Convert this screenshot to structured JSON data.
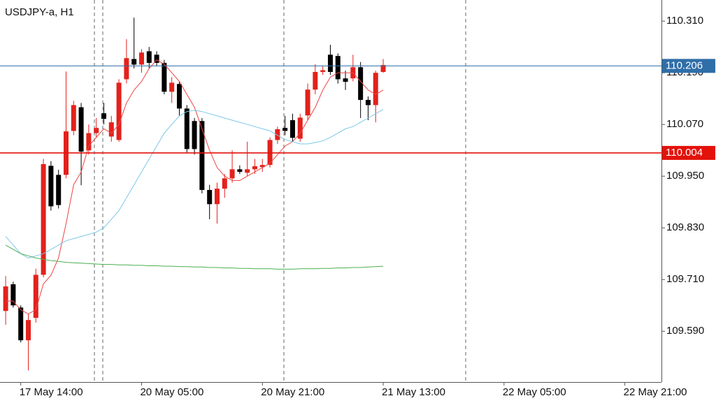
{
  "chart_data": {
    "type": "candlestick",
    "title": "USDJPY-a, H1",
    "x": [
      0,
      1,
      2,
      3,
      4,
      5,
      6,
      7,
      8,
      9,
      10,
      11,
      12,
      13,
      14,
      15,
      16,
      17,
      18,
      19,
      20,
      21,
      22,
      23,
      24,
      25,
      26,
      27,
      28,
      29,
      30,
      31,
      32,
      33,
      34,
      35,
      36,
      37,
      38,
      39,
      40,
      41,
      42,
      43,
      44,
      45,
      46,
      47,
      48,
      49,
      50
    ],
    "open": [
      109.637,
      109.699,
      109.645,
      109.569,
      109.621,
      109.721,
      109.974,
      109.953,
      109.953,
      110.055,
      110.11,
      110.01,
      110.05,
      110.096,
      110.042,
      110.034,
      110.175,
      110.222,
      110.209,
      110.24,
      110.232,
      110.213,
      110.146,
      110.164,
      110.107,
      110.078,
      110.078,
      109.918,
      109.885,
      109.921,
      109.945,
      109.966,
      109.958,
      109.966,
      109.971,
      109.976,
      110.034,
      110.062,
      110.08,
      110.037,
      110.091,
      110.151,
      110.192,
      110.232,
      110.229,
      110.177,
      110.177,
      110.203,
      110.127,
      110.115,
      110.192
    ],
    "high": [
      109.718,
      109.705,
      109.65,
      109.63,
      109.735,
      109.99,
      109.985,
      109.965,
      110.193,
      110.125,
      110.12,
      110.07,
      110.085,
      110.12,
      110.09,
      110.175,
      110.268,
      110.318,
      110.245,
      110.25,
      110.24,
      110.22,
      110.18,
      110.17,
      110.115,
      110.085,
      110.085,
      109.93,
      109.935,
      109.955,
      110.01,
      109.975,
      110.03,
      109.99,
      109.99,
      110.04,
      110.065,
      110.09,
      110.095,
      110.095,
      110.165,
      110.21,
      110.205,
      110.255,
      110.235,
      110.195,
      110.232,
      110.215,
      110.135,
      110.195,
      110.222
    ],
    "low": [
      109.605,
      109.645,
      109.564,
      109.499,
      109.61,
      109.715,
      109.87,
      109.875,
      109.945,
      110.045,
      109.929,
      110.0,
      110.04,
      110.07,
      110.03,
      110.03,
      110.165,
      110.2,
      110.19,
      110.2,
      110.205,
      110.14,
      110.12,
      110.09,
      110.005,
      110.0,
      109.91,
      109.85,
      109.84,
      109.9,
      109.935,
      109.955,
      109.95,
      109.955,
      109.96,
      109.97,
      110.025,
      110.045,
      110.03,
      110.03,
      110.08,
      110.14,
      110.185,
      110.185,
      110.165,
      110.15,
      110.17,
      110.085,
      110.08,
      110.075,
      110.19
    ],
    "close": [
      109.694,
      109.65,
      109.569,
      109.616,
      109.721,
      109.978,
      109.88,
      109.883,
      110.054,
      110.115,
      110.007,
      110.05,
      110.062,
      110.083,
      110.075,
      110.167,
      110.224,
      110.209,
      110.237,
      110.213,
      110.213,
      110.146,
      110.167,
      110.107,
      110.013,
      110.013,
      109.918,
      109.885,
      109.921,
      109.945,
      109.966,
      109.96,
      109.966,
      109.973,
      109.976,
      110.034,
      110.059,
      110.055,
      110.039,
      110.086,
      110.151,
      110.192,
      110.196,
      110.192,
      110.175,
      110.169,
      110.203,
      110.127,
      110.115,
      110.19,
      110.208
    ],
    "up_color": "#e3211c",
    "down_color": "#000000",
    "series": [
      {
        "color": "#ee4444",
        "values": [
          109.66,
          109.66,
          109.64,
          109.63,
          109.64,
          109.7,
          109.72,
          109.76,
          109.84,
          109.93,
          109.96,
          110.02,
          110.04,
          110.06,
          110.05,
          110.07,
          110.12,
          110.15,
          110.17,
          110.2,
          110.22,
          110.21,
          110.19,
          110.17,
          110.14,
          110.11,
          110.06,
          110.01,
          109.97,
          109.95,
          109.94,
          109.94,
          109.95,
          109.96,
          109.97,
          109.98,
          110.0,
          110.02,
          110.03,
          110.05,
          110.08,
          110.11,
          110.15,
          110.18,
          110.19,
          110.19,
          110.19,
          110.17,
          110.15,
          110.14,
          110.15
        ]
      },
      {
        "color": "#7cc8e8",
        "values": [
          109.81,
          109.79,
          109.77,
          109.76,
          109.765,
          109.77,
          109.78,
          109.79,
          109.8,
          109.805,
          109.81,
          109.815,
          109.82,
          109.83,
          109.85,
          109.87,
          109.9,
          109.93,
          109.96,
          109.99,
          110.02,
          110.05,
          110.07,
          110.09,
          110.1,
          110.103,
          110.1,
          110.095,
          110.09,
          110.085,
          110.08,
          110.075,
          110.07,
          110.065,
          110.06,
          110.055,
          110.045,
          110.035,
          110.03,
          110.025,
          110.025,
          110.028,
          110.032,
          110.04,
          110.05,
          110.06,
          110.065,
          110.075,
          110.085,
          110.095,
          110.105
        ]
      },
      {
        "color": "#4caf50",
        "values": [
          109.79,
          109.78,
          109.77,
          109.765,
          109.76,
          109.757,
          109.754,
          109.752,
          109.75,
          109.749,
          109.748,
          109.747,
          109.746,
          109.745,
          109.745,
          109.744,
          109.744,
          109.743,
          109.743,
          109.742,
          109.742,
          109.741,
          109.741,
          109.74,
          109.74,
          109.739,
          109.739,
          109.738,
          109.738,
          109.737,
          109.737,
          109.736,
          109.736,
          109.735,
          109.735,
          109.735,
          109.734,
          109.734,
          109.734,
          109.735,
          109.735,
          109.735,
          109.736,
          109.736,
          109.737,
          109.737,
          109.738,
          109.738,
          109.739,
          109.74,
          109.741
        ]
      }
    ],
    "hlines": [
      {
        "value": 110.206,
        "color": "#2f6ea8"
      },
      {
        "value": 110.004,
        "color": "#e3120b"
      }
    ],
    "xlim": [
      -0.75,
      86.85
    ],
    "xticks": [
      {
        "value": 2,
        "label": "17 May 14:00"
      },
      {
        "value": 18,
        "label": "20 May 05:00"
      },
      {
        "value": 34,
        "label": "20 May 21:00"
      },
      {
        "value": 50,
        "label": "21 May 13:00"
      },
      {
        "value": 66,
        "label": "22 May 05:00"
      },
      {
        "value": 82,
        "label": "22 May 21:00"
      }
    ],
    "ylim": [
      109.472,
      110.359
    ],
    "yticks": [
      {
        "value": 110.31,
        "label": "110.310"
      },
      {
        "value": 110.19,
        "label": "110.190"
      },
      {
        "value": 110.07,
        "label": "110.070"
      },
      {
        "value": 109.95,
        "label": "109.950"
      },
      {
        "value": 109.83,
        "label": "109.830"
      },
      {
        "value": 109.71,
        "label": "109.710"
      },
      {
        "value": 109.59,
        "label": "109.590"
      }
    ]
  }
}
